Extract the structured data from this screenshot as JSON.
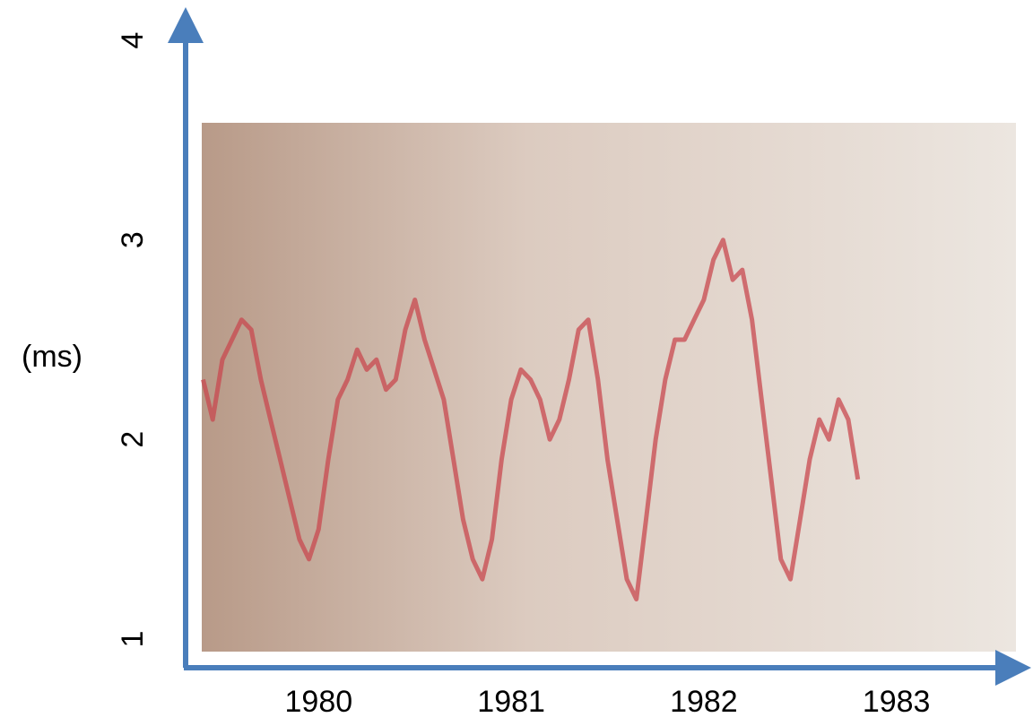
{
  "chart_data": {
    "type": "line",
    "ylabel": "(ms)",
    "x": [
      1979.4,
      1979.45,
      1979.5,
      1979.55,
      1979.6,
      1979.65,
      1979.7,
      1979.75,
      1979.8,
      1979.85,
      1979.9,
      1979.95,
      1980.0,
      1980.05,
      1980.1,
      1980.15,
      1980.2,
      1980.25,
      1980.3,
      1980.35,
      1980.4,
      1980.45,
      1980.5,
      1980.55,
      1980.6,
      1980.65,
      1980.7,
      1980.75,
      1980.8,
      1980.85,
      1980.9,
      1980.95,
      1981.0,
      1981.05,
      1981.1,
      1981.15,
      1981.2,
      1981.25,
      1981.3,
      1981.35,
      1981.4,
      1981.45,
      1981.5,
      1981.55,
      1981.6,
      1981.65,
      1981.7,
      1981.75,
      1981.8,
      1981.85,
      1981.9,
      1981.95,
      1982.0,
      1982.05,
      1982.1,
      1982.15,
      1982.2,
      1982.25,
      1982.3,
      1982.35,
      1982.4,
      1982.45,
      1982.5,
      1982.55,
      1982.6,
      1982.65,
      1982.7,
      1982.75,
      1982.8
    ],
    "series": [
      {
        "color": "#c8484f",
        "values": [
          2.3,
          2.1,
          2.4,
          2.5,
          2.6,
          2.55,
          2.3,
          2.1,
          1.9,
          1.7,
          1.5,
          1.4,
          1.55,
          1.9,
          2.2,
          2.3,
          2.45,
          2.35,
          2.4,
          2.25,
          2.3,
          2.55,
          2.7,
          2.5,
          2.35,
          2.2,
          1.9,
          1.6,
          1.4,
          1.3,
          1.5,
          1.9,
          2.2,
          2.35,
          2.3,
          2.2,
          2.0,
          2.1,
          2.3,
          2.55,
          2.6,
          2.3,
          1.9,
          1.6,
          1.3,
          1.2,
          1.6,
          2.0,
          2.3,
          2.5,
          2.5,
          2.6,
          2.7,
          2.9,
          3.0,
          2.8,
          2.85,
          2.6,
          2.2,
          1.8,
          1.4,
          1.3,
          1.6,
          1.9,
          2.1,
          2.0,
          2.2,
          2.1,
          1.8
        ]
      }
    ],
    "xlim": [
      1979.3,
      1983.7
    ],
    "xticks": [
      1980,
      1981,
      1982,
      1983
    ],
    "ylim": [
      1,
      4
    ],
    "yticks": [
      1,
      2,
      3,
      4
    ]
  }
}
